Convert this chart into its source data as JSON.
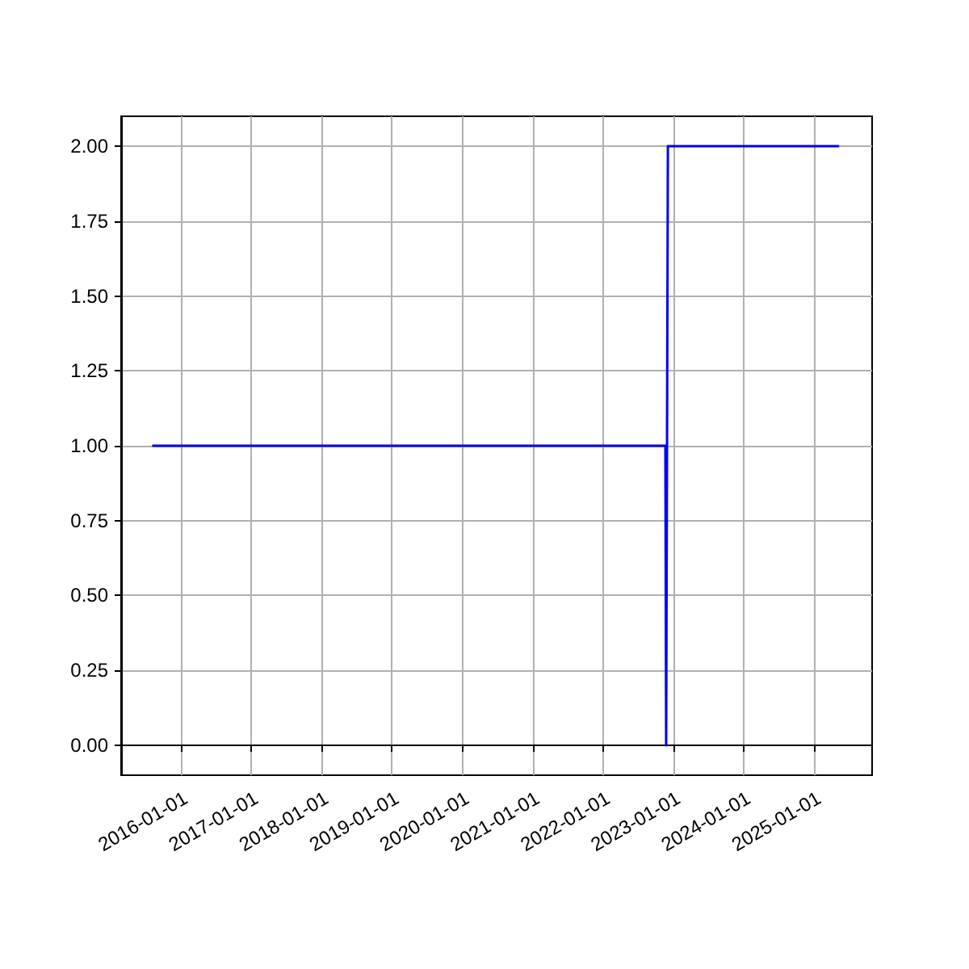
{
  "chart_data": {
    "type": "line",
    "x": [
      "2015-08-10",
      "2022-11-20",
      "2022-11-24",
      "2022-11-28",
      "2022-12-03",
      "2025-05-05"
    ],
    "series": [
      {
        "color": "#0000ff",
        "values": [
          1,
          1,
          0,
          0,
          2,
          2
        ]
      }
    ],
    "xlim": [
      "2015-02-25",
      "2025-10-28"
    ],
    "xticks": [
      "2016-01-01",
      "2017-01-01",
      "2018-01-01",
      "2019-01-01",
      "2020-01-01",
      "2021-01-01",
      "2022-01-01",
      "2023-01-01",
      "2024-01-01",
      "2025-01-01"
    ],
    "ylim": [
      -0.1,
      2.1
    ],
    "yticks": [
      {
        "value": 0,
        "label": "0.00"
      },
      {
        "value": 0.25,
        "label": "0.25"
      },
      {
        "value": 0.5,
        "label": "0.50"
      },
      {
        "value": 0.75,
        "label": "0.75"
      },
      {
        "value": 1,
        "label": "1.00"
      },
      {
        "value": 1.25,
        "label": "1.25"
      },
      {
        "value": 1.5,
        "label": "1.50"
      },
      {
        "value": 1.75,
        "label": "1.75"
      },
      {
        "value": 2,
        "label": "2.00"
      }
    ],
    "grid": true,
    "marker": "none",
    "line_style": "solid"
  }
}
